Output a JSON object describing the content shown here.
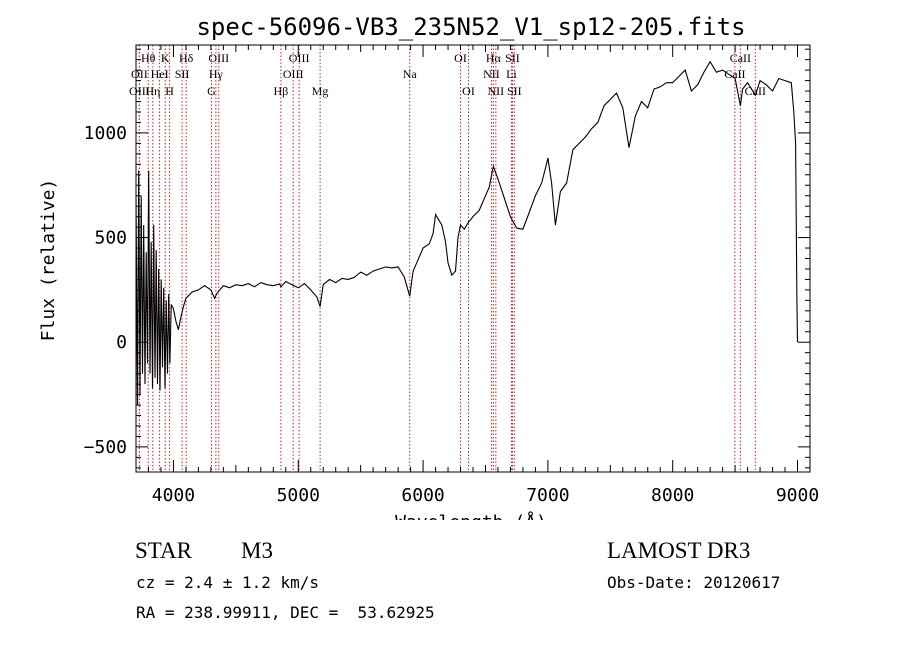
{
  "title": "spec-56096-VB3_235N52_V1_sp12-205.fits",
  "colors": {
    "line_marker": "#cc2222",
    "spectrum": "#000000",
    "axes": "#000000"
  },
  "chart_data": {
    "type": "line",
    "title": "spec-56096-VB3_235N52_V1_sp12-205.fits",
    "xlabel": "Wavelength (Å)",
    "ylabel": "Flux (relative)",
    "xlim": [
      3700,
      9100
    ],
    "ylim": [
      -620,
      1420
    ],
    "x_ticks": [
      4000,
      5000,
      6000,
      7000,
      8000,
      9000
    ],
    "y_ticks": [
      -500,
      0,
      500,
      1000
    ],
    "grid": false,
    "series": [
      {
        "values": [
          [
            3700,
            700
          ],
          [
            3712,
            -300
          ],
          [
            3722,
            820
          ],
          [
            3732,
            -250
          ],
          [
            3742,
            700
          ],
          [
            3752,
            -150
          ],
          [
            3762,
            560
          ],
          [
            3772,
            -200
          ],
          [
            3782,
            430
          ],
          [
            3792,
            -100
          ],
          [
            3802,
            820
          ],
          [
            3812,
            -150
          ],
          [
            3822,
            480
          ],
          [
            3832,
            -220
          ],
          [
            3842,
            560
          ],
          [
            3852,
            -170
          ],
          [
            3862,
            440
          ],
          [
            3872,
            -200
          ],
          [
            3882,
            350
          ],
          [
            3892,
            -230
          ],
          [
            3902,
            300
          ],
          [
            3912,
            -120
          ],
          [
            3922,
            260
          ],
          [
            3932,
            -220
          ],
          [
            3942,
            200
          ],
          [
            3952,
            -150
          ],
          [
            3962,
            230
          ],
          [
            3972,
            -100
          ],
          [
            3982,
            180
          ],
          [
            4000,
            160
          ],
          [
            4020,
            100
          ],
          [
            4040,
            60
          ],
          [
            4060,
            120
          ],
          [
            4080,
            170
          ],
          [
            4100,
            210
          ],
          [
            4150,
            240
          ],
          [
            4200,
            250
          ],
          [
            4250,
            270
          ],
          [
            4300,
            250
          ],
          [
            4330,
            210
          ],
          [
            4350,
            235
          ],
          [
            4400,
            270
          ],
          [
            4450,
            260
          ],
          [
            4500,
            275
          ],
          [
            4550,
            270
          ],
          [
            4600,
            280
          ],
          [
            4650,
            265
          ],
          [
            4700,
            285
          ],
          [
            4750,
            275
          ],
          [
            4800,
            270
          ],
          [
            4850,
            278
          ],
          [
            4861,
            265
          ],
          [
            4900,
            290
          ],
          [
            4950,
            275
          ],
          [
            5000,
            260
          ],
          [
            5050,
            280
          ],
          [
            5100,
            250
          ],
          [
            5150,
            215
          ],
          [
            5175,
            170
          ],
          [
            5200,
            275
          ],
          [
            5250,
            300
          ],
          [
            5300,
            285
          ],
          [
            5350,
            305
          ],
          [
            5400,
            300
          ],
          [
            5450,
            310
          ],
          [
            5500,
            335
          ],
          [
            5550,
            320
          ],
          [
            5600,
            340
          ],
          [
            5650,
            350
          ],
          [
            5700,
            360
          ],
          [
            5750,
            355
          ],
          [
            5800,
            360
          ],
          [
            5850,
            310
          ],
          [
            5893,
            220
          ],
          [
            5920,
            340
          ],
          [
            5950,
            380
          ],
          [
            6000,
            450
          ],
          [
            6050,
            470
          ],
          [
            6080,
            520
          ],
          [
            6100,
            610
          ],
          [
            6130,
            580
          ],
          [
            6150,
            560
          ],
          [
            6180,
            480
          ],
          [
            6200,
            380
          ],
          [
            6230,
            320
          ],
          [
            6260,
            340
          ],
          [
            6280,
            500
          ],
          [
            6300,
            560
          ],
          [
            6330,
            540
          ],
          [
            6360,
            570
          ],
          [
            6400,
            600
          ],
          [
            6450,
            630
          ],
          [
            6500,
            700
          ],
          [
            6530,
            740
          ],
          [
            6563,
            840
          ],
          [
            6600,
            780
          ],
          [
            6650,
            690
          ],
          [
            6700,
            600
          ],
          [
            6750,
            545
          ],
          [
            6800,
            540
          ],
          [
            6850,
            620
          ],
          [
            6900,
            700
          ],
          [
            6950,
            760
          ],
          [
            6980,
            830
          ],
          [
            7000,
            880
          ],
          [
            7030,
            760
          ],
          [
            7060,
            560
          ],
          [
            7100,
            720
          ],
          [
            7150,
            760
          ],
          [
            7200,
            920
          ],
          [
            7250,
            950
          ],
          [
            7300,
            980
          ],
          [
            7350,
            1020
          ],
          [
            7400,
            1050
          ],
          [
            7450,
            1130
          ],
          [
            7500,
            1160
          ],
          [
            7550,
            1190
          ],
          [
            7600,
            1120
          ],
          [
            7650,
            930
          ],
          [
            7700,
            1080
          ],
          [
            7750,
            1150
          ],
          [
            7800,
            1120
          ],
          [
            7850,
            1210
          ],
          [
            7900,
            1220
          ],
          [
            7950,
            1240
          ],
          [
            8000,
            1240
          ],
          [
            8050,
            1270
          ],
          [
            8100,
            1300
          ],
          [
            8150,
            1200
          ],
          [
            8200,
            1230
          ],
          [
            8250,
            1290
          ],
          [
            8300,
            1340
          ],
          [
            8350,
            1290
          ],
          [
            8400,
            1300
          ],
          [
            8450,
            1280
          ],
          [
            8500,
            1260
          ],
          [
            8542,
            1130
          ],
          [
            8560,
            1210
          ],
          [
            8600,
            1240
          ],
          [
            8662,
            1180
          ],
          [
            8700,
            1250
          ],
          [
            8750,
            1230
          ],
          [
            8800,
            1200
          ],
          [
            8850,
            1260
          ],
          [
            8900,
            1250
          ],
          [
            8950,
            1240
          ],
          [
            8970,
            1100
          ],
          [
            8985,
            950
          ],
          [
            8995,
            200
          ],
          [
            9000,
            0
          ]
        ]
      }
    ],
    "lines": [
      {
        "name": "Hθ",
        "x": 3798,
        "row": 1
      },
      {
        "name": "OII",
        "x": 3727,
        "row": 2
      },
      {
        "name": "OIII",
        "x": 3727,
        "row": 3
      },
      {
        "name": "K",
        "x": 3934,
        "row": 1
      },
      {
        "name": "HeI",
        "x": 3889,
        "row": 2
      },
      {
        "name": "Hη",
        "x": 3835,
        "row": 3
      },
      {
        "name": "H",
        "x": 3969,
        "row": 3
      },
      {
        "name": "Hδ",
        "x": 4102,
        "row": 1
      },
      {
        "name": "SII",
        "x": 4069,
        "row": 2
      },
      {
        "name": "OIII",
        "x": 4363,
        "row": 1
      },
      {
        "name": "Hγ",
        "x": 4340,
        "row": 2
      },
      {
        "name": "G",
        "x": 4305,
        "row": 3
      },
      {
        "name": "OIII",
        "x": 5007,
        "row": 1
      },
      {
        "name": "OIII",
        "x": 4959,
        "row": 2
      },
      {
        "name": "Hβ",
        "x": 4861,
        "row": 3
      },
      {
        "name": "Mg",
        "x": 5175,
        "row": 3
      },
      {
        "name": "Na",
        "x": 5893,
        "row": 2
      },
      {
        "name": "OI",
        "x": 6300,
        "row": 1
      },
      {
        "name": "OI",
        "x": 6364,
        "row": 3
      },
      {
        "name": "Hα",
        "x": 6563,
        "row": 1
      },
      {
        "name": "SII",
        "x": 6716,
        "row": 1
      },
      {
        "name": "NII",
        "x": 6548,
        "row": 2
      },
      {
        "name": "Li",
        "x": 6708,
        "row": 2
      },
      {
        "name": "NII",
        "x": 6583,
        "row": 3
      },
      {
        "name": "SII",
        "x": 6731,
        "row": 3
      },
      {
        "name": "CaII",
        "x": 8542,
        "row": 1
      },
      {
        "name": "CaII",
        "x": 8498,
        "row": 2
      },
      {
        "name": "CaII",
        "x": 8662,
        "row": 3
      }
    ]
  },
  "info": {
    "object_class": "STAR",
    "subclass": "M3",
    "survey": "LAMOST DR3",
    "redshift": "cz = 2.4 ± 1.2 km/s",
    "obs_date": "Obs-Date: 20120617",
    "coords": "RA = 238.99911, DEC =  53.62925"
  }
}
